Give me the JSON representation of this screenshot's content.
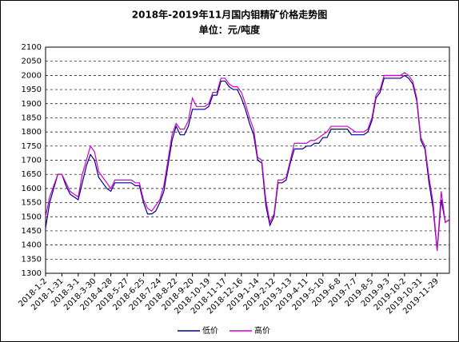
{
  "chart_data": {
    "type": "line",
    "title": "2018年-2019年11月国内钼精矿价格走势图",
    "subtitle": "单位：元/吨度",
    "categories": [
      "2018-1-2",
      null,
      null,
      null,
      "2018-1-31",
      null,
      null,
      null,
      "2018-3-1",
      null,
      null,
      null,
      "2018-3-30",
      null,
      null,
      null,
      "2018-4-28",
      null,
      null,
      null,
      "2018-5-27",
      null,
      null,
      null,
      "2018-6-25",
      null,
      null,
      null,
      "2018-7-24",
      null,
      null,
      null,
      "2018-8-22",
      null,
      null,
      null,
      "2018-9-20",
      null,
      null,
      null,
      "2018-10-19",
      null,
      null,
      null,
      "2018-11-17",
      null,
      null,
      null,
      "2018-12-16",
      null,
      null,
      null,
      "2019-1-14",
      null,
      null,
      null,
      "2019-2-12",
      null,
      null,
      null,
      "2019-3-13",
      null,
      null,
      null,
      "2019-4-11",
      null,
      null,
      null,
      "2019-5-10",
      null,
      null,
      null,
      "2019-6-8",
      null,
      null,
      null,
      "2019-7-7",
      null,
      null,
      null,
      "2019-8-5",
      null,
      null,
      null,
      "2019-9-3",
      null,
      null,
      null,
      "2019-10-2",
      null,
      null,
      null,
      "2019-10-31",
      null,
      null,
      null,
      "2019-11-29",
      null,
      null,
      null
    ],
    "series": [
      {
        "name": "低价",
        "color": "#000080",
        "values": [
          1460,
          1550,
          1600,
          1650,
          1650,
          1610,
          1580,
          1570,
          1560,
          1620,
          1680,
          1720,
          1700,
          1640,
          1620,
          1600,
          1590,
          1620,
          1620,
          1620,
          1620,
          1620,
          1610,
          1610,
          1550,
          1510,
          1510,
          1520,
          1550,
          1590,
          1680,
          1770,
          1820,
          1790,
          1790,
          1820,
          1880,
          1880,
          1880,
          1880,
          1890,
          1930,
          1930,
          1980,
          1980,
          1960,
          1950,
          1950,
          1920,
          1880,
          1830,
          1790,
          1700,
          1690,
          1540,
          1470,
          1500,
          1620,
          1620,
          1630,
          1690,
          1740,
          1740,
          1740,
          1750,
          1750,
          1760,
          1760,
          1780,
          1780,
          1810,
          1810,
          1810,
          1810,
          1810,
          1790,
          1790,
          1790,
          1790,
          1800,
          1840,
          1920,
          1940,
          1990,
          1990,
          1990,
          1990,
          1990,
          2000,
          1990,
          1970,
          1910,
          1770,
          1740,
          1620,
          1530,
          1380,
          1560,
          1480,
          1490
        ]
      },
      {
        "name": "高价",
        "color": "#cc00cc",
        "values": [
          1500,
          1570,
          1610,
          1650,
          1650,
          1620,
          1590,
          1580,
          1570,
          1650,
          1700,
          1750,
          1730,
          1660,
          1640,
          1620,
          1600,
          1630,
          1630,
          1630,
          1630,
          1630,
          1620,
          1620,
          1560,
          1530,
          1520,
          1540,
          1560,
          1610,
          1700,
          1790,
          1830,
          1810,
          1810,
          1840,
          1920,
          1890,
          1890,
          1890,
          1900,
          1940,
          1940,
          1990,
          1990,
          1970,
          1960,
          1960,
          1940,
          1900,
          1850,
          1810,
          1710,
          1700,
          1560,
          1480,
          1510,
          1630,
          1630,
          1640,
          1700,
          1760,
          1760,
          1760,
          1760,
          1770,
          1770,
          1780,
          1790,
          1800,
          1820,
          1820,
          1820,
          1820,
          1820,
          1810,
          1800,
          1800,
          1800,
          1810,
          1850,
          1930,
          1950,
          2000,
          2000,
          2000,
          2000,
          2000,
          2010,
          2000,
          1980,
          1920,
          1780,
          1750,
          1640,
          1550,
          1380,
          1590,
          1480,
          1490
        ]
      }
    ],
    "ylim": [
      1300,
      2100
    ],
    "yticks": [
      1300,
      1350,
      1400,
      1450,
      1500,
      1550,
      1600,
      1650,
      1700,
      1750,
      1800,
      1850,
      1900,
      1950,
      2000,
      2050,
      2100
    ],
    "grid": true
  }
}
